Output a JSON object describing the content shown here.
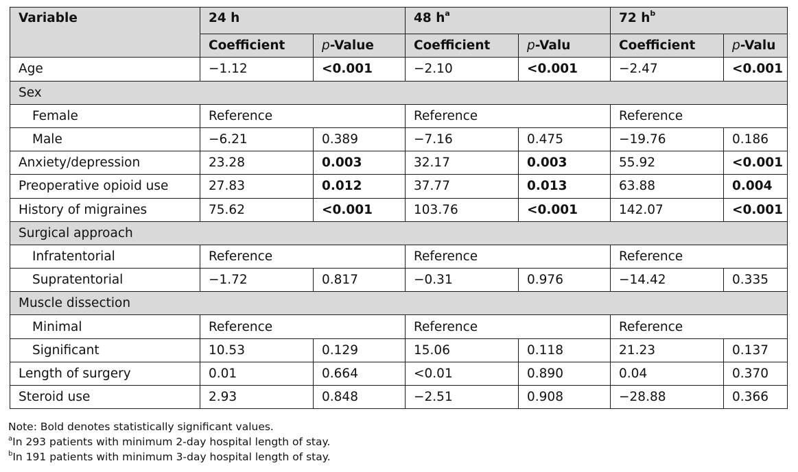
{
  "header": {
    "variable": "Variable",
    "h24": "24 h",
    "h48": "48 h",
    "h48_sup": "a",
    "h72": "72 h",
    "h72_sup": "b",
    "coef": "Coefficient",
    "p_prefix": "p",
    "p_24": "-Value",
    "p_48": "-Valu",
    "p_72": "-Valu"
  },
  "rows": {
    "age": {
      "label": "Age",
      "c24": "−1.12",
      "p24": "<0.001",
      "c48": "−2.10",
      "p48": "<0.001",
      "c72": "−2.47",
      "p72": "<0.001"
    },
    "sex": {
      "label": "Sex"
    },
    "female": {
      "label": "Female",
      "r24": "Reference",
      "r48": "Reference",
      "r72": "Reference"
    },
    "male": {
      "label": "Male",
      "c24": "−6.21",
      "p24": "0.389",
      "c48": "−7.16",
      "p48": "0.475",
      "c72": "−19.76",
      "p72": "0.186"
    },
    "anxiety": {
      "label": "Anxiety/depression",
      "c24": "23.28",
      "p24": "0.003",
      "c48": "32.17",
      "p48": "0.003",
      "c72": "55.92",
      "p72": "<0.001"
    },
    "opioid": {
      "label": "Preoperative opioid use",
      "c24": "27.83",
      "p24": "0.012",
      "c48": "37.77",
      "p48": "0.013",
      "c72": "63.88",
      "p72": "0.004"
    },
    "migraines": {
      "label": "History of migraines",
      "c24": "75.62",
      "p24": "<0.001",
      "c48": "103.76",
      "p48": "<0.001",
      "c72": "142.07",
      "p72": "<0.001"
    },
    "surgical": {
      "label": "Surgical approach"
    },
    "infra": {
      "label": "Infratentorial",
      "r24": "Reference",
      "r48": "Reference",
      "r72": "Reference"
    },
    "supra": {
      "label": "Supratentorial",
      "c24": "−1.72",
      "p24": "0.817",
      "c48": "−0.31",
      "p48": "0.976",
      "c72": "−14.42",
      "p72": "0.335"
    },
    "muscle": {
      "label": "Muscle dissection"
    },
    "minimal": {
      "label": "Minimal",
      "r24": "Reference",
      "r48": "Reference",
      "r72": "Reference"
    },
    "significant": {
      "label": "Significant",
      "c24": "10.53",
      "p24": "0.129",
      "c48": "15.06",
      "p48": "0.118",
      "c72": "21.23",
      "p72": "0.137"
    },
    "length": {
      "label": "Length of surgery",
      "c24": "0.01",
      "p24": "0.664",
      "c48": "<0.01",
      "p48": "0.890",
      "c72": "0.04",
      "p72": "0.370"
    },
    "steroid": {
      "label": "Steroid use",
      "c24": "2.93",
      "p24": "0.848",
      "c48": "−2.51",
      "p48": "0.908",
      "c72": "−28.88",
      "p72": "0.366"
    }
  },
  "notes": {
    "note": "Note: Bold denotes statistically significant values.",
    "a_mark": "a",
    "a_text": "In 293 patients with minimum 2-day hospital length of stay.",
    "b_mark": "b",
    "b_text": "In 191 patients with minimum 3-day hospital length of stay."
  }
}
